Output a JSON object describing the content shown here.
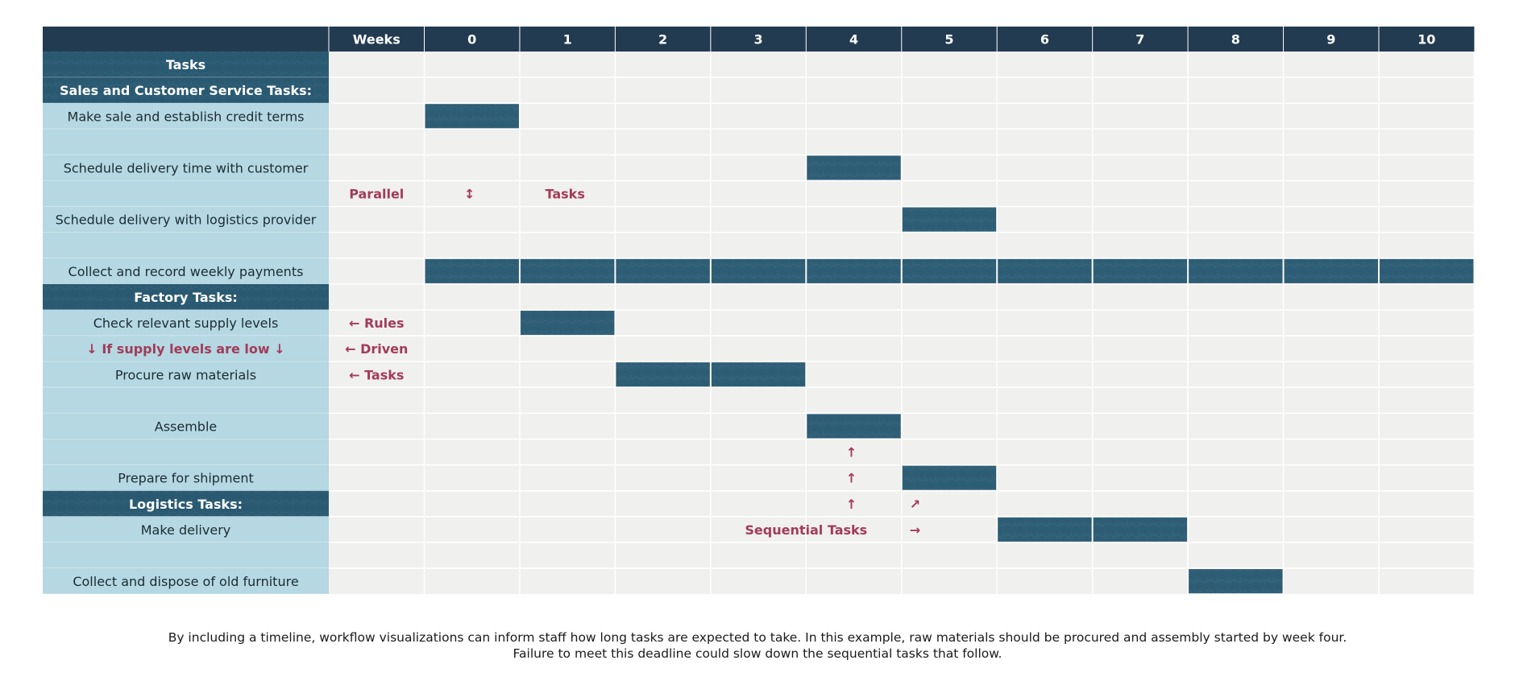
{
  "chart_data": {
    "type": "table",
    "header": {
      "weeks_label": "Weeks",
      "weeks": [
        "0",
        "1",
        "2",
        "3",
        "4",
        "5",
        "6",
        "7",
        "8",
        "9",
        "10"
      ]
    },
    "rows": [
      {
        "label": "Tasks",
        "kind": "heading",
        "bars": []
      },
      {
        "label": "Sales and Customer Service Tasks:",
        "kind": "heading",
        "bars": []
      },
      {
        "label": "Make sale and establish credit terms",
        "kind": "task",
        "bars": [
          0
        ]
      },
      {
        "label": "",
        "kind": "task",
        "bars": []
      },
      {
        "label": "Schedule delivery time with customer",
        "kind": "task",
        "bars": [
          4
        ]
      },
      {
        "label": "",
        "kind": "task",
        "bars": []
      },
      {
        "label": "Schedule delivery with logistics provider",
        "kind": "task",
        "bars": [
          5
        ]
      },
      {
        "label": "",
        "kind": "task",
        "bars": []
      },
      {
        "label": "Collect and record weekly payments",
        "kind": "task",
        "bars": [
          0,
          1,
          2,
          3,
          4,
          5,
          6,
          7,
          8,
          9,
          10
        ]
      },
      {
        "label": "Factory Tasks:",
        "kind": "heading",
        "bars": []
      },
      {
        "label": "Check relevant supply levels",
        "kind": "task",
        "bars": [
          1
        ]
      },
      {
        "label": "↓ If supply levels are low ↓",
        "kind": "note",
        "bars": []
      },
      {
        "label": "Procure raw materials",
        "kind": "task",
        "bars": [
          2,
          3
        ]
      },
      {
        "label": "",
        "kind": "task",
        "bars": []
      },
      {
        "label": "Assemble",
        "kind": "task",
        "bars": [
          4
        ]
      },
      {
        "label": "",
        "kind": "task",
        "bars": []
      },
      {
        "label": "Prepare for shipment",
        "kind": "task",
        "bars": [
          5
        ]
      },
      {
        "label": "Logistics Tasks:",
        "kind": "heading",
        "bars": []
      },
      {
        "label": "Make delivery",
        "kind": "task",
        "bars": [
          6,
          7
        ]
      },
      {
        "label": "",
        "kind": "task",
        "bars": []
      },
      {
        "label": "Collect and dispose of old furniture",
        "kind": "task",
        "bars": [
          8
        ]
      }
    ],
    "annotations": [
      {
        "text": "Parallel",
        "row": 5,
        "col": -1,
        "anchor": "center"
      },
      {
        "text": "↕",
        "row": 5,
        "col": 0,
        "anchor": "center"
      },
      {
        "text": "Tasks",
        "row": 5,
        "col": 1,
        "anchor": "center"
      },
      {
        "text": "← Rules",
        "row": 10,
        "col": -1,
        "anchor": "center"
      },
      {
        "text": "← Driven",
        "row": 11,
        "col": -1,
        "anchor": "center"
      },
      {
        "text": "← Tasks",
        "row": 12,
        "col": -1,
        "anchor": "center"
      },
      {
        "text": "↑",
        "row": 15,
        "col": 4,
        "anchor": "center"
      },
      {
        "text": "↑",
        "row": 16,
        "col": 4,
        "anchor": "center"
      },
      {
        "text": "↑",
        "row": 17,
        "col": 4,
        "anchor": "center"
      },
      {
        "text": "↗",
        "row": 17,
        "col": 5,
        "anchor": "left"
      },
      {
        "text": "Sequential Tasks",
        "row": 18,
        "col": 4,
        "anchor": "boundary"
      },
      {
        "text": "→",
        "row": 18,
        "col": 5,
        "anchor": "left"
      }
    ],
    "colors": {
      "header_bg": "#223b50",
      "header_text": "#ffffff",
      "heading_bg": "#2a5a72",
      "task_label_bg": "#b5d8e2",
      "grid_bg": "#f0f0ef",
      "grid_line": "#ffffff",
      "bar": "#2e5e76",
      "annotation": "#a23b5a",
      "label_text": "#1c2b33"
    }
  },
  "caption": {
    "line1": "By including a timeline, workflow visualizations can inform staff how long tasks are expected to take. In this example, raw materials should be procured and assembly started by week four.",
    "line2": "Failure to meet this deadline could slow down the sequential tasks that follow."
  }
}
